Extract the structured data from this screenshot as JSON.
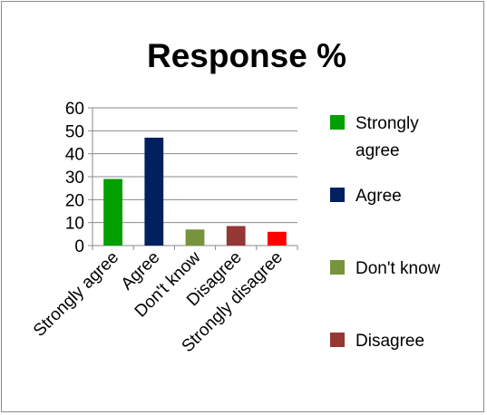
{
  "chart_data": {
    "type": "bar",
    "title": "Response %",
    "xlabel": "",
    "ylabel": "",
    "categories": [
      "Strongly agree",
      "Agree",
      "Don't know",
      "Disagree",
      "Strongly disagree"
    ],
    "values": [
      29,
      47,
      7,
      8.5,
      6
    ],
    "colors": [
      "#00a000",
      "#002060",
      "#77933c",
      "#953735",
      "#ff0000"
    ],
    "ylim": [
      0,
      60
    ],
    "yticks": [
      0,
      10,
      20,
      30,
      40,
      50,
      60
    ],
    "grid": true,
    "legend": {
      "placement": "right",
      "entries": [
        {
          "lines": [
            "Strongly",
            "agree"
          ],
          "color": "#00a000"
        },
        {
          "lines": [
            "Agree"
          ],
          "color": "#002060"
        },
        {
          "lines": [
            "Don't know"
          ],
          "color": "#77933c"
        },
        {
          "lines": [
            "Disagree"
          ],
          "color": "#953735"
        }
      ]
    }
  }
}
